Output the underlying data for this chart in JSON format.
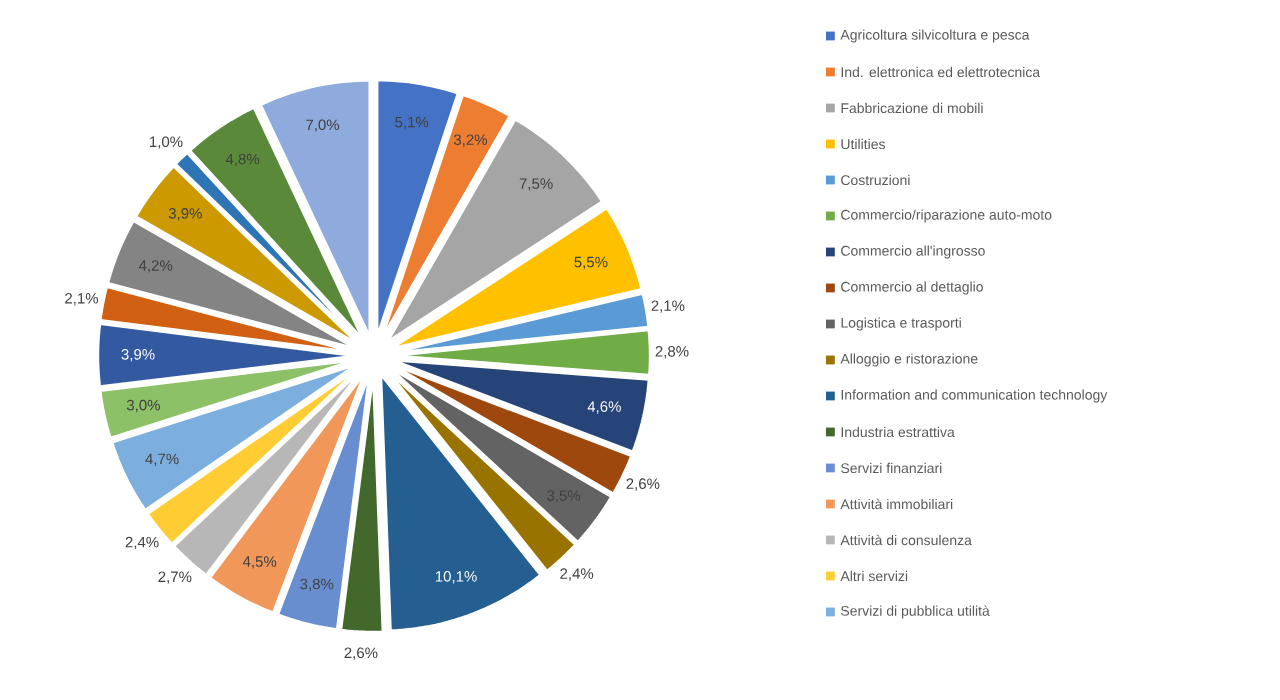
{
  "chart_data": {
    "type": "pie",
    "categories": [
      "Agricoltura silvicoltura e pesca",
      "Ind. elettronica ed elettrotecnica",
      "Fabbricazione di mobili",
      "Utilities",
      "Costruzioni",
      "Commercio/riparazione auto-moto",
      "Commercio all'ingrosso",
      "Commercio al dettaglio",
      "Logistica e trasporti",
      "Alloggio e ristorazione",
      "Information and communication technology",
      "Industria estrattiva",
      "Servizi finanziari",
      "Attività immobiliari",
      "Attività di consulenza",
      "Altri servizi",
      "Servizi di pubblica utilità",
      null,
      null,
      null,
      null,
      null,
      null,
      null,
      null
    ],
    "values": [
      5.1,
      3.2,
      7.5,
      5.5,
      2.1,
      2.8,
      4.6,
      2.6,
      3.5,
      2.4,
      10.1,
      2.6,
      3.8,
      4.5,
      2.7,
      2.4,
      4.7,
      3.0,
      3.9,
      2.1,
      4.2,
      3.9,
      1.0,
      4.8,
      7.0
    ],
    "value_labels": [
      "5,1%",
      "3,2%",
      "7,5%",
      "5,5%",
      "2,1%",
      "2,8%",
      "4,6%",
      "2,6%",
      "3,5%",
      "2,4%",
      "10,1%",
      "2,6%",
      "3,8%",
      "4,5%",
      "2,7%",
      "2,4%",
      "4,7%",
      "3,0%",
      "3,9%",
      "2,1%",
      "4,2%",
      "3,9%",
      "1,0%",
      "4,8%",
      "7,0%"
    ],
    "colors": [
      "#4472c4",
      "#ed7d31",
      "#a5a5a5",
      "#ffc000",
      "#5b9bd5",
      "#70ad47",
      "#264478",
      "#9e480e",
      "#636363",
      "#997300",
      "#255e91",
      "#43682b",
      "#698ed0",
      "#f1975a",
      "#b7b7b7",
      "#ffcd33",
      "#7cafdd",
      "#8cc168",
      "#335aa1",
      "#d26012",
      "#848484",
      "#cc9a00",
      "#2e75b6",
      "#5a8a39",
      "#8faadc"
    ],
    "legend": "right"
  }
}
